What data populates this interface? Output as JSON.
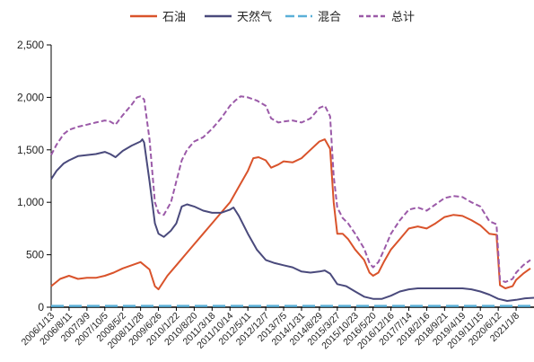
{
  "chart_data": {
    "type": "line",
    "title": "",
    "xlabel": "",
    "ylabel": "",
    "ylim": [
      0,
      2500
    ],
    "yticks": [
      "0",
      "500",
      "1,000",
      "1,500",
      "2,000",
      "2,500"
    ],
    "grid": false,
    "legend_position": "top",
    "x_tick_labels": [
      "2006/1/13",
      "2006/8/11",
      "2007/3/9",
      "2007/10/5",
      "2008/5/2",
      "2008/11/28",
      "2009/6/26",
      "2010/1/22",
      "2010/8/20",
      "2011/3/18",
      "2011/10/14",
      "2012/5/11",
      "2012/12/7",
      "2013/7/5",
      "2014/1/31",
      "2014/8/29",
      "2015/3/27",
      "2015/10/23",
      "2016/5/20",
      "2016/12/16",
      "2017/7/14",
      "2018/2/16",
      "2018/9/21",
      "2019/4/19",
      "2019/11/15",
      "2020/6/12",
      "2021/1/8"
    ],
    "series": [
      {
        "name": "石油",
        "color": "#d9532b",
        "dash": "solid",
        "values": [
          [
            0,
            200
          ],
          [
            0.5,
            270
          ],
          [
            1,
            300
          ],
          [
            1.5,
            270
          ],
          [
            2,
            280
          ],
          [
            2.5,
            280
          ],
          [
            3,
            300
          ],
          [
            3.5,
            330
          ],
          [
            4,
            370
          ],
          [
            4.5,
            400
          ],
          [
            5,
            430
          ],
          [
            5.5,
            360
          ],
          [
            5.8,
            200
          ],
          [
            6,
            170
          ],
          [
            6.5,
            300
          ],
          [
            7,
            400
          ],
          [
            7.5,
            500
          ],
          [
            8,
            600
          ],
          [
            8.5,
            700
          ],
          [
            9,
            800
          ],
          [
            9.5,
            900
          ],
          [
            10,
            1000
          ],
          [
            10.5,
            1150
          ],
          [
            11,
            1300
          ],
          [
            11.3,
            1420
          ],
          [
            11.6,
            1430
          ],
          [
            12,
            1400
          ],
          [
            12.3,
            1330
          ],
          [
            12.7,
            1360
          ],
          [
            13,
            1390
          ],
          [
            13.5,
            1380
          ],
          [
            14,
            1420
          ],
          [
            14.5,
            1500
          ],
          [
            15,
            1580
          ],
          [
            15.3,
            1600
          ],
          [
            15.6,
            1510
          ],
          [
            15.8,
            1000
          ],
          [
            16,
            700
          ],
          [
            16.3,
            700
          ],
          [
            16.6,
            650
          ],
          [
            17,
            550
          ],
          [
            17.5,
            450
          ],
          [
            17.8,
            330
          ],
          [
            18,
            300
          ],
          [
            18.3,
            330
          ],
          [
            18.6,
            430
          ],
          [
            19,
            550
          ],
          [
            19.5,
            650
          ],
          [
            20,
            750
          ],
          [
            20.5,
            770
          ],
          [
            21,
            750
          ],
          [
            21.5,
            800
          ],
          [
            22,
            860
          ],
          [
            22.5,
            880
          ],
          [
            23,
            870
          ],
          [
            23.5,
            830
          ],
          [
            24,
            780
          ],
          [
            24.5,
            700
          ],
          [
            24.9,
            690
          ],
          [
            25.1,
            210
          ],
          [
            25.4,
            180
          ],
          [
            25.8,
            200
          ],
          [
            26,
            260
          ],
          [
            26.4,
            320
          ],
          [
            26.8,
            370
          ]
        ]
      },
      {
        "name": "天然气",
        "color": "#4a4a7c",
        "dash": "solid",
        "values": [
          [
            0,
            1220
          ],
          [
            0.3,
            1300
          ],
          [
            0.7,
            1370
          ],
          [
            1,
            1400
          ],
          [
            1.5,
            1440
          ],
          [
            2,
            1450
          ],
          [
            2.5,
            1460
          ],
          [
            3,
            1480
          ],
          [
            3.3,
            1460
          ],
          [
            3.6,
            1430
          ],
          [
            4,
            1490
          ],
          [
            4.5,
            1540
          ],
          [
            5,
            1580
          ],
          [
            5.1,
            1600
          ],
          [
            5.2,
            1570
          ],
          [
            5.5,
            1200
          ],
          [
            5.8,
            800
          ],
          [
            6,
            700
          ],
          [
            6.3,
            670
          ],
          [
            6.7,
            730
          ],
          [
            7,
            800
          ],
          [
            7.3,
            960
          ],
          [
            7.6,
            980
          ],
          [
            8,
            960
          ],
          [
            8.5,
            920
          ],
          [
            9,
            900
          ],
          [
            9.5,
            900
          ],
          [
            10,
            930
          ],
          [
            10.2,
            950
          ],
          [
            10.5,
            870
          ],
          [
            11,
            700
          ],
          [
            11.5,
            550
          ],
          [
            12,
            450
          ],
          [
            12.5,
            420
          ],
          [
            13,
            400
          ],
          [
            13.5,
            380
          ],
          [
            14,
            340
          ],
          [
            14.5,
            330
          ],
          [
            15,
            340
          ],
          [
            15.3,
            350
          ],
          [
            15.6,
            320
          ],
          [
            16,
            220
          ],
          [
            16.5,
            200
          ],
          [
            17,
            150
          ],
          [
            17.5,
            100
          ],
          [
            18,
            80
          ],
          [
            18.5,
            80
          ],
          [
            19,
            110
          ],
          [
            19.5,
            150
          ],
          [
            20,
            170
          ],
          [
            20.5,
            180
          ],
          [
            21,
            180
          ],
          [
            21.5,
            180
          ],
          [
            22,
            180
          ],
          [
            22.5,
            180
          ],
          [
            23,
            180
          ],
          [
            23.5,
            170
          ],
          [
            24,
            150
          ],
          [
            24.5,
            120
          ],
          [
            25,
            80
          ],
          [
            25.5,
            60
          ],
          [
            26,
            70
          ],
          [
            26.5,
            85
          ],
          [
            27,
            90
          ]
        ]
      },
      {
        "name": "混合",
        "color": "#5ab0d8",
        "dash": "long-dash",
        "values": [
          [
            0,
            12
          ],
          [
            5,
            12
          ],
          [
            10,
            12
          ],
          [
            15,
            12
          ],
          [
            20,
            12
          ],
          [
            25,
            12
          ],
          [
            27,
            12
          ]
        ]
      },
      {
        "name": "总计",
        "color": "#9b5aa8",
        "dash": "short-dash",
        "values": [
          [
            0,
            1450
          ],
          [
            0.3,
            1550
          ],
          [
            0.7,
            1650
          ],
          [
            1,
            1690
          ],
          [
            1.5,
            1720
          ],
          [
            2,
            1740
          ],
          [
            2.5,
            1760
          ],
          [
            3,
            1780
          ],
          [
            3.3,
            1770
          ],
          [
            3.6,
            1740
          ],
          [
            4,
            1830
          ],
          [
            4.5,
            1930
          ],
          [
            4.8,
            2000
          ],
          [
            5,
            2010
          ],
          [
            5.2,
            1980
          ],
          [
            5.5,
            1600
          ],
          [
            5.8,
            1000
          ],
          [
            6,
            900
          ],
          [
            6.3,
            880
          ],
          [
            6.7,
            1000
          ],
          [
            7,
            1200
          ],
          [
            7.3,
            1400
          ],
          [
            7.6,
            1500
          ],
          [
            8,
            1580
          ],
          [
            8.5,
            1620
          ],
          [
            9,
            1700
          ],
          [
            9.5,
            1800
          ],
          [
            10,
            1920
          ],
          [
            10.3,
            1970
          ],
          [
            10.6,
            2010
          ],
          [
            11,
            2000
          ],
          [
            11.5,
            1970
          ],
          [
            12,
            1920
          ],
          [
            12.3,
            1800
          ],
          [
            12.7,
            1760
          ],
          [
            13,
            1770
          ],
          [
            13.5,
            1780
          ],
          [
            14,
            1760
          ],
          [
            14.5,
            1800
          ],
          [
            15,
            1900
          ],
          [
            15.3,
            1920
          ],
          [
            15.6,
            1820
          ],
          [
            15.8,
            1250
          ],
          [
            16,
            950
          ],
          [
            16.3,
            850
          ],
          [
            16.6,
            800
          ],
          [
            17,
            700
          ],
          [
            17.5,
            560
          ],
          [
            17.8,
            420
          ],
          [
            18,
            380
          ],
          [
            18.3,
            430
          ],
          [
            18.6,
            540
          ],
          [
            19,
            700
          ],
          [
            19.5,
            830
          ],
          [
            20,
            930
          ],
          [
            20.5,
            950
          ],
          [
            21,
            920
          ],
          [
            21.5,
            980
          ],
          [
            22,
            1040
          ],
          [
            22.5,
            1060
          ],
          [
            23,
            1050
          ],
          [
            23.5,
            1000
          ],
          [
            24,
            960
          ],
          [
            24.5,
            820
          ],
          [
            24.9,
            790
          ],
          [
            25.1,
            260
          ],
          [
            25.4,
            240
          ],
          [
            25.8,
            270
          ],
          [
            26,
            330
          ],
          [
            26.4,
            400
          ],
          [
            26.8,
            450
          ]
        ]
      }
    ]
  }
}
